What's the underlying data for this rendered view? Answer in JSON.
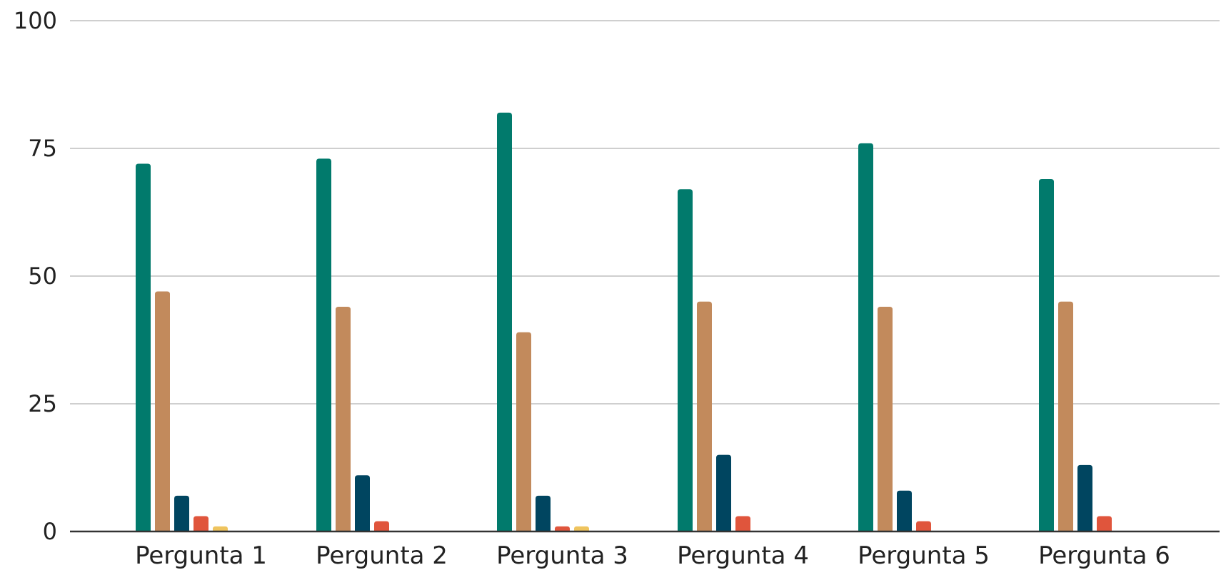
{
  "chart_data": {
    "type": "bar",
    "categories": [
      "Pergunta 1",
      "Pergunta 2",
      "Pergunta 3",
      "Pergunta 4",
      "Pergunta 5",
      "Pergunta 6"
    ],
    "series": [
      {
        "values": [
          72,
          73,
          82,
          67,
          76,
          69
        ],
        "color": "#017a6c"
      },
      {
        "values": [
          47,
          44,
          39,
          45,
          44,
          45
        ],
        "color": "#c28a5c"
      },
      {
        "values": [
          7,
          11,
          7,
          15,
          8,
          13
        ],
        "color": "#004560"
      },
      {
        "values": [
          3,
          2,
          1,
          3,
          2,
          3
        ],
        "color": "#e0553c"
      },
      {
        "values": [
          1,
          0,
          1,
          0,
          0,
          0
        ],
        "color": "#efc45e"
      }
    ],
    "title": "",
    "xlabel": "",
    "ylabel": "",
    "ylim": [
      0,
      100
    ],
    "yticks": [
      "0",
      "25",
      "50",
      "75",
      "100"
    ],
    "grid": true,
    "legend": "none"
  }
}
